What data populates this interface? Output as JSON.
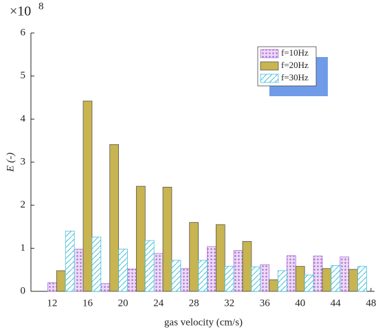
{
  "chart_data": {
    "type": "bar",
    "xlabel": "gas velocity  (cm/s)",
    "ylabel": "E (-)",
    "y_multiplier": "×10",
    "y_exponent": "8",
    "x": [
      13,
      16,
      19,
      22,
      25,
      28,
      31,
      34,
      37,
      40,
      43,
      46
    ],
    "series": [
      {
        "name": "f=10Hz",
        "color": "#b070d8",
        "pattern": "dots",
        "values": [
          0.2,
          0.98,
          0.18,
          0.52,
          0.88,
          0.53,
          1.04,
          0.95,
          0.62,
          0.83,
          0.82,
          0.8
        ]
      },
      {
        "name": "f=20Hz",
        "color": "#c8b450",
        "pattern": "solid",
        "values": [
          0.48,
          4.42,
          3.41,
          2.44,
          2.42,
          1.6,
          1.55,
          1.16,
          0.27,
          0.58,
          0.53,
          0.51
        ]
      },
      {
        "name": "f=30Hz",
        "color": "#40c0d8",
        "pattern": "hatch",
        "values": [
          1.4,
          1.26,
          0.98,
          1.18,
          0.72,
          0.72,
          0.58,
          0.57,
          0.48,
          0.38,
          0.6,
          0.58
        ]
      }
    ],
    "xlim": [
      9.6,
      48.4
    ],
    "xticks": [
      12,
      16,
      20,
      24,
      28,
      32,
      36,
      40,
      44,
      48
    ],
    "ylim": [
      0,
      6
    ],
    "yticks": [
      0,
      1,
      2,
      3,
      4,
      5,
      6
    ],
    "bar_width": 1,
    "legend": "upper right"
  }
}
